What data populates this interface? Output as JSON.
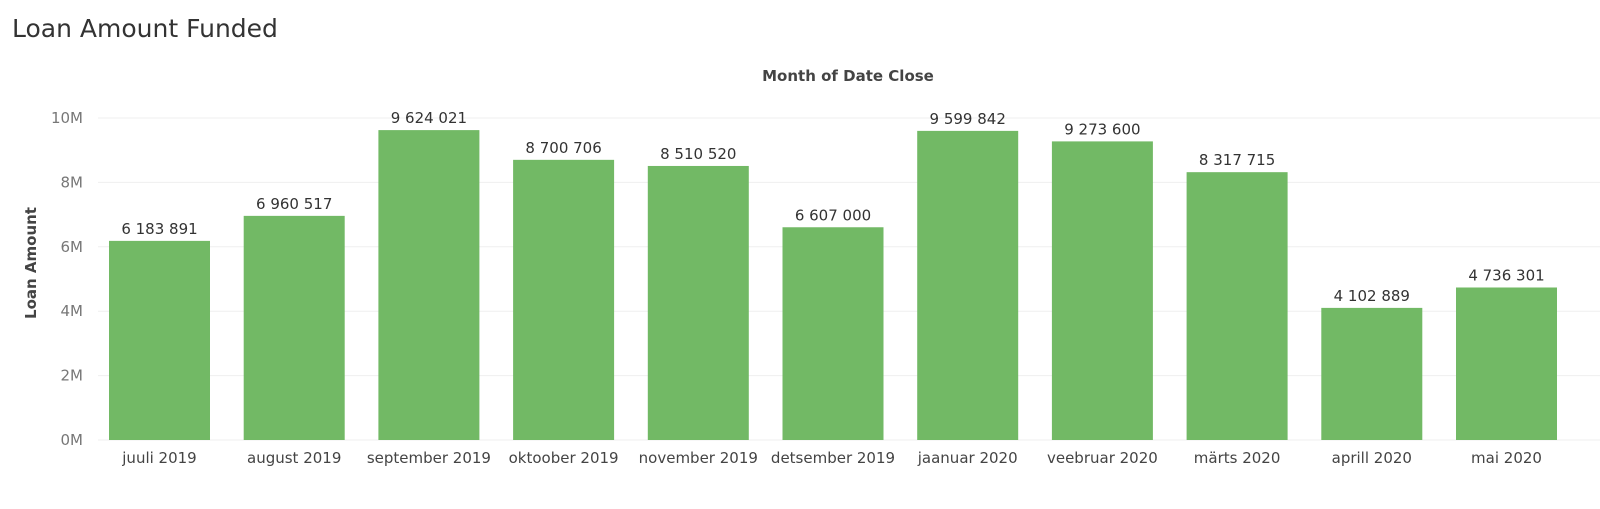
{
  "page": {
    "title": "Loan Amount Funded"
  },
  "chart_data": {
    "type": "bar",
    "title": "Loan Amount Funded",
    "xlabel": "Month of Date Close",
    "ylabel": "Loan Amount",
    "categories": [
      "juuli 2019",
      "august 2019",
      "september 2019",
      "oktoober 2019",
      "november 2019",
      "detsember 2019",
      "jaanuar 2020",
      "veebruar 2020",
      "märts 2020",
      "aprill 2020",
      "mai 2020"
    ],
    "values": [
      6183891,
      6960517,
      9624021,
      8700706,
      8510520,
      6607000,
      9599842,
      9273600,
      8317715,
      4102889,
      4736301
    ],
    "value_labels": [
      "6 183 891",
      "6 960 517",
      "9 624 021",
      "8 700 706",
      "8 510 520",
      "6 607 000",
      "9 599 842",
      "9 273 600",
      "8 317 715",
      "4 102 889",
      "4 736 301"
    ],
    "yticks": [
      0,
      2000000,
      4000000,
      6000000,
      8000000,
      10000000
    ],
    "ytick_labels": [
      "0M",
      "2M",
      "4M",
      "6M",
      "8M",
      "10M"
    ],
    "ylim": [
      0,
      10000000
    ],
    "grid": true,
    "legend": "none",
    "bar_color": "#72b965"
  }
}
